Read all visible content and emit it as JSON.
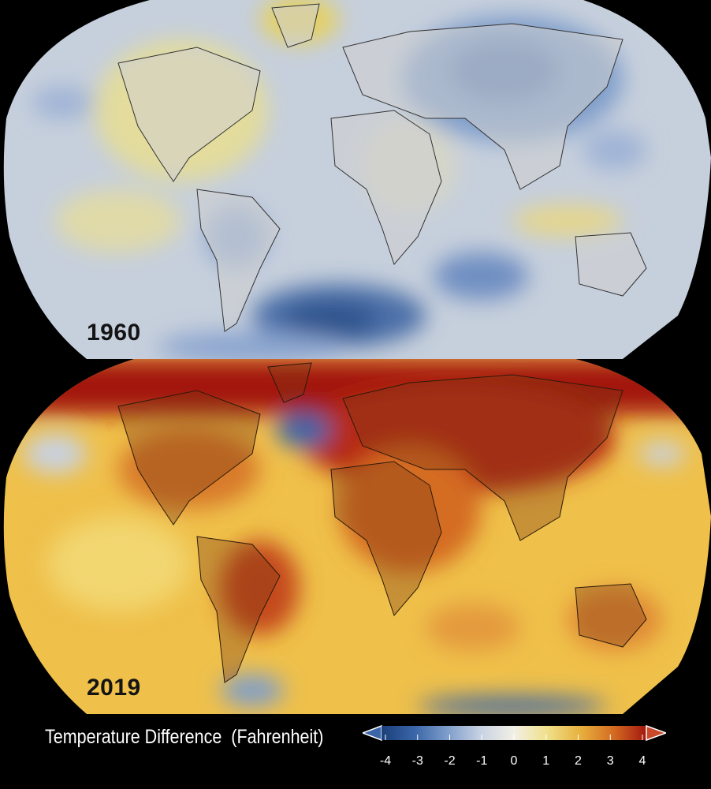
{
  "panels": [
    {
      "year": "1960"
    },
    {
      "year": "2019"
    }
  ],
  "legend": {
    "title": "Temperature Difference",
    "unit": "(Fahrenheit)",
    "ticks": [
      "-4",
      "-3",
      "-2",
      "-1",
      "0",
      "1",
      "2",
      "3",
      "4"
    ],
    "colors": [
      "#1b3f7a",
      "#3a66a8",
      "#7f9ecb",
      "#c8d2e2",
      "#f2f0e6",
      "#efe08a",
      "#e8b13e",
      "#d46c22",
      "#a3170f"
    ]
  }
}
